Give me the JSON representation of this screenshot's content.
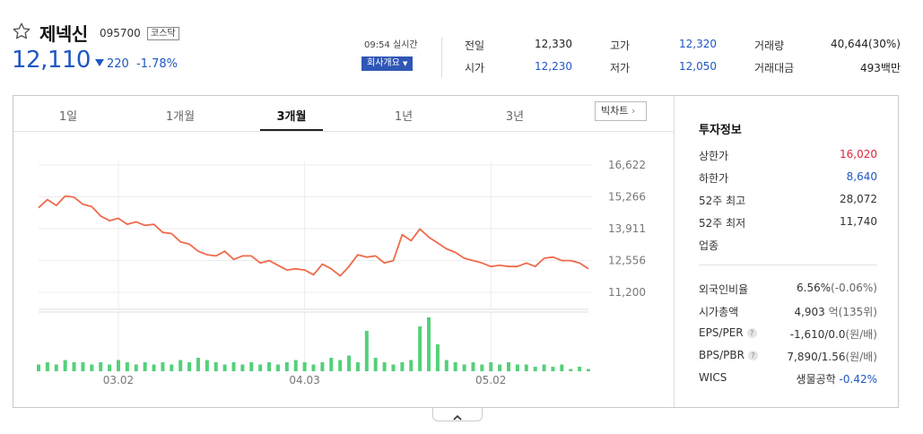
{
  "stock": {
    "name": "제넥신",
    "code": "095700",
    "market": "코스닥",
    "price": "12,110",
    "change": "220",
    "change_pct": "-1.78%",
    "time": "09:54 실시간",
    "company_info_button": "회사개요"
  },
  "quote": {
    "prev_close_label": "전일",
    "prev_close": "12,330",
    "open_label": "시가",
    "open": "12,230",
    "high_label": "고가",
    "high": "12,320",
    "low_label": "저가",
    "low": "12,050",
    "volume_label": "거래량",
    "volume": "40,644(30%)",
    "amount_label": "거래대금",
    "amount": "493백만"
  },
  "tabs": [
    {
      "label": "1일"
    },
    {
      "label": "1개월"
    },
    {
      "label": "3개월"
    },
    {
      "label": "1년"
    },
    {
      "label": "3년"
    }
  ],
  "active_tab": "3개월",
  "big_chart_button": "빅차트",
  "colors": {
    "line": "#f06a4a",
    "volume": "#54d07a",
    "up": "#e3223a",
    "down": "#1f56c4"
  },
  "chart_data": {
    "type": "line",
    "y_ticks": [
      16622,
      15266,
      13911,
      12556,
      11200
    ],
    "y_tick_labels": [
      "16,622",
      "15,266",
      "13,911",
      "12,556",
      "11,200"
    ],
    "ylim": [
      11200,
      16622
    ],
    "x_tick_labels": [
      "03.02",
      "04.03",
      "05.02"
    ],
    "x_tick_index": [
      9,
      30,
      51
    ],
    "grid": true,
    "price": [
      14800,
      15150,
      14900,
      15300,
      15250,
      14950,
      14850,
      14450,
      14250,
      14350,
      14100,
      14200,
      14050,
      14100,
      13750,
      13700,
      13350,
      13250,
      12950,
      12800,
      12750,
      12950,
      12600,
      12750,
      12750,
      12450,
      12550,
      12350,
      12150,
      12200,
      12150,
      11950,
      12400,
      12200,
      11900,
      12300,
      12800,
      12700,
      12750,
      12450,
      12550,
      13650,
      13400,
      13900,
      13550,
      13300,
      13050,
      12900,
      12650,
      12550,
      12450,
      12300,
      12350,
      12300,
      12300,
      12450,
      12300,
      12650,
      12700,
      12550,
      12550,
      12450,
      12200
    ],
    "volume": [
      3,
      4,
      3,
      5,
      4,
      4,
      3,
      4,
      3,
      5,
      4,
      3,
      4,
      3,
      4,
      3,
      5,
      4,
      6,
      5,
      4,
      3,
      4,
      3,
      4,
      3,
      4,
      3,
      4,
      5,
      4,
      3,
      4,
      6,
      5,
      7,
      4,
      18,
      6,
      4,
      3,
      4,
      5,
      20,
      24,
      12,
      5,
      4,
      3,
      4,
      3,
      4,
      3,
      4,
      3,
      3,
      2,
      3,
      2,
      3,
      1,
      2,
      1
    ]
  },
  "side": {
    "title": "투자정보",
    "upper_limit_label": "상한가",
    "upper_limit": "16,020",
    "lower_limit_label": "하한가",
    "lower_limit": "8,640",
    "high52_label": "52주 최고",
    "high52": "28,072",
    "low52_label": "52주 최저",
    "low52": "11,740",
    "sector_label": "업종",
    "foreign_label": "외국인비율",
    "foreign": "6.56%",
    "foreign_change": "(-0.06%)",
    "market_cap_label": "시가총액",
    "market_cap": "4,903",
    "market_cap_unit": "억(135위)",
    "eps_label": "EPS/PER",
    "eps": "-1,610/0.0",
    "eps_unit": "(원/배)",
    "bps_label": "BPS/PBR",
    "bps": "7,890/1.56",
    "bps_unit": "(원/배)",
    "wics_label": "WICS",
    "wics": "생물공학",
    "wics_change": "-0.42%",
    "help_icon_text": "?"
  }
}
